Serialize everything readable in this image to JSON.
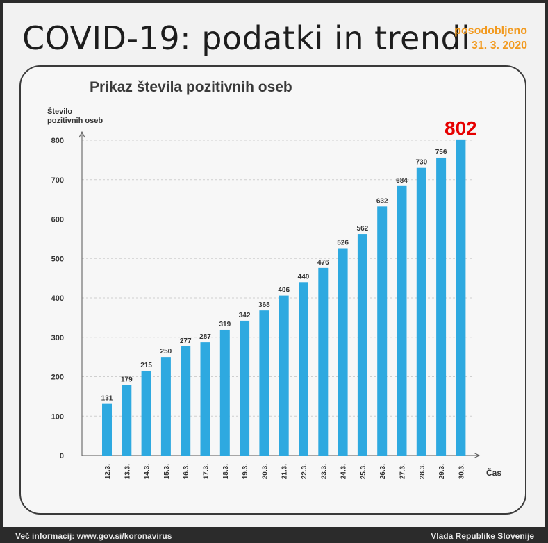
{
  "header": {
    "title": "COVID-19: podatki in trendi",
    "updated_label": "posodobljeno",
    "updated_date": "31. 3. 2020"
  },
  "footer": {
    "left": "Več informacij: www.gov.si/koronavirus",
    "right": "Vlada Republike Slovenije"
  },
  "colors": {
    "bar": "#2ea9e0",
    "highlight": "#e60000",
    "accent": "#f29a1f"
  },
  "chart_data": {
    "type": "bar",
    "title": "Prikaz števila pozitivnih oseb",
    "ylabel": "Število pozitivnih oseb",
    "xlabel": "Čas",
    "categories": [
      "12.3.",
      "13.3.",
      "14.3.",
      "15.3.",
      "16.3.",
      "17.3.",
      "18.3.",
      "19.3.",
      "20.3.",
      "21.3.",
      "22.3.",
      "23.3.",
      "24.3.",
      "25.3.",
      "26.3.",
      "27.3.",
      "28.3.",
      "29.3.",
      "30.3."
    ],
    "values": [
      131,
      179,
      215,
      250,
      277,
      287,
      319,
      342,
      368,
      406,
      440,
      476,
      526,
      562,
      632,
      684,
      730,
      756,
      802
    ],
    "ylim": [
      0,
      800
    ],
    "yticks": [
      0,
      100,
      200,
      300,
      400,
      500,
      600,
      700,
      800
    ],
    "highlight_last": true,
    "grid": true
  }
}
